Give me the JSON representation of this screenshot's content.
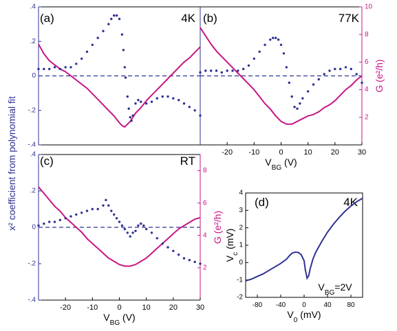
{
  "figure": {
    "shared_ylabel": "x² coefficient from polynomial fit",
    "colors": {
      "x2": "#2e3192",
      "g": "#c71585",
      "axis": "#000000",
      "left_axis": "#2e3192",
      "right_axis": "#c71585"
    }
  },
  "chart_data": [
    {
      "id": "a",
      "type": "scatter+line",
      "panel_label": "(a)",
      "temperature": "4K",
      "xlim": [
        -30,
        30
      ],
      "ylim_left": [
        -0.4,
        0.4
      ],
      "ylim_right": [
        0,
        10
      ],
      "xticks": [],
      "yticks_left": [
        -0.4,
        -0.2,
        0,
        0.2,
        0.4
      ],
      "yticks_right": [],
      "x2_points": [
        [
          -30,
          0.04
        ],
        [
          -28,
          0.04
        ],
        [
          -26,
          0.04
        ],
        [
          -24,
          0.05
        ],
        [
          -22,
          0.04
        ],
        [
          -20,
          0.05
        ],
        [
          -18,
          0.05
        ],
        [
          -16,
          0.07
        ],
        [
          -14,
          0.1
        ],
        [
          -12,
          0.14
        ],
        [
          -10,
          0.18
        ],
        [
          -8,
          0.22
        ],
        [
          -6,
          0.26
        ],
        [
          -4,
          0.3
        ],
        [
          -3,
          0.33
        ],
        [
          -2,
          0.35
        ],
        [
          -1,
          0.35
        ],
        [
          0,
          0.33
        ],
        [
          1,
          0.24
        ],
        [
          1.5,
          0.15
        ],
        [
          2,
          0.05
        ],
        [
          2.3,
          -0.01
        ],
        [
          3,
          -0.12
        ],
        [
          3.5,
          -0.19
        ],
        [
          4,
          -0.24
        ],
        [
          4.5,
          -0.26
        ],
        [
          5,
          -0.23
        ],
        [
          6,
          -0.16
        ],
        [
          7,
          -0.14
        ],
        [
          8,
          -0.15
        ],
        [
          10,
          -0.16
        ],
        [
          12,
          -0.15
        ],
        [
          14,
          -0.13
        ],
        [
          16,
          -0.12
        ],
        [
          18,
          -0.12
        ],
        [
          20,
          -0.13
        ],
        [
          22,
          -0.14
        ],
        [
          24,
          -0.16
        ],
        [
          26,
          -0.18
        ],
        [
          28,
          -0.2
        ],
        [
          30,
          -0.23
        ]
      ],
      "g_line": [
        [
          -30,
          7.3
        ],
        [
          -28,
          6.6
        ],
        [
          -26,
          6.1
        ],
        [
          -24,
          5.8
        ],
        [
          -22,
          5.5
        ],
        [
          -20,
          5.3
        ],
        [
          -18,
          5.0
        ],
        [
          -16,
          4.7
        ],
        [
          -14,
          4.4
        ],
        [
          -12,
          4.1
        ],
        [
          -10,
          3.7
        ],
        [
          -8,
          3.3
        ],
        [
          -6,
          2.9
        ],
        [
          -4,
          2.5
        ],
        [
          -2,
          2.1
        ],
        [
          0,
          1.6
        ],
        [
          1,
          1.4
        ],
        [
          2,
          1.3
        ],
        [
          3,
          1.5
        ],
        [
          4,
          1.7
        ],
        [
          5,
          2.0
        ],
        [
          6,
          2.3
        ],
        [
          8,
          2.7
        ],
        [
          10,
          3.2
        ],
        [
          12,
          3.6
        ],
        [
          14,
          4.0
        ],
        [
          16,
          4.4
        ],
        [
          18,
          4.8
        ],
        [
          20,
          5.2
        ],
        [
          22,
          5.6
        ],
        [
          24,
          6.0
        ],
        [
          26,
          6.3
        ],
        [
          28,
          6.7
        ],
        [
          30,
          7.1
        ]
      ]
    },
    {
      "id": "b",
      "type": "scatter+line",
      "panel_label": "(b)",
      "temperature": "77K",
      "xlabel": "V_BG (V)",
      "xlim": [
        -30,
        30
      ],
      "ylim_left": [
        -0.4,
        0.4
      ],
      "ylim_right": [
        0,
        10
      ],
      "xticks": [
        -20,
        -10,
        0,
        10,
        20,
        30
      ],
      "yticks_left": [],
      "yticks_right": [
        2,
        4,
        6,
        8,
        10
      ],
      "right_ylabel": "G (e²/h)",
      "x2_points": [
        [
          -30,
          0.02
        ],
        [
          -28,
          0.03
        ],
        [
          -26,
          0.03
        ],
        [
          -24,
          0.03
        ],
        [
          -22,
          0.02
        ],
        [
          -20,
          0.03
        ],
        [
          -18,
          0.03
        ],
        [
          -16,
          0.03
        ],
        [
          -14,
          0.04
        ],
        [
          -12,
          0.06
        ],
        [
          -10,
          0.1
        ],
        [
          -8,
          0.14
        ],
        [
          -6,
          0.18
        ],
        [
          -4,
          0.21
        ],
        [
          -3,
          0.22
        ],
        [
          -2,
          0.22
        ],
        [
          -1,
          0.21
        ],
        [
          0,
          0.18
        ],
        [
          1,
          0.13
        ],
        [
          2,
          0.05
        ],
        [
          3,
          -0.04
        ],
        [
          4,
          -0.12
        ],
        [
          5,
          -0.18
        ],
        [
          6,
          -0.19
        ],
        [
          7,
          -0.16
        ],
        [
          8,
          -0.13
        ],
        [
          10,
          -0.09
        ],
        [
          12,
          -0.05
        ],
        [
          14,
          -0.02
        ],
        [
          16,
          0.01
        ],
        [
          18,
          0.03
        ],
        [
          20,
          0.04
        ],
        [
          22,
          0.04
        ],
        [
          24,
          0.05
        ],
        [
          26,
          0.04
        ],
        [
          28,
          0.01
        ],
        [
          30,
          -0.04
        ]
      ],
      "g_line": [
        [
          -30,
          8.5
        ],
        [
          -28,
          7.9
        ],
        [
          -26,
          7.3
        ],
        [
          -24,
          6.8
        ],
        [
          -22,
          6.4
        ],
        [
          -20,
          6.0
        ],
        [
          -18,
          5.6
        ],
        [
          -16,
          5.2
        ],
        [
          -14,
          4.8
        ],
        [
          -12,
          4.4
        ],
        [
          -10,
          4.0
        ],
        [
          -8,
          3.5
        ],
        [
          -6,
          3.0
        ],
        [
          -4,
          2.6
        ],
        [
          -2,
          2.1
        ],
        [
          0,
          1.7
        ],
        [
          2,
          1.5
        ],
        [
          4,
          1.5
        ],
        [
          6,
          1.7
        ],
        [
          8,
          1.9
        ],
        [
          10,
          2.1
        ],
        [
          12,
          2.2
        ],
        [
          14,
          2.4
        ],
        [
          16,
          2.7
        ],
        [
          18,
          2.9
        ],
        [
          20,
          3.2
        ],
        [
          22,
          3.6
        ],
        [
          24,
          4.0
        ],
        [
          26,
          4.3
        ],
        [
          28,
          4.7
        ],
        [
          30,
          5.0
        ]
      ]
    },
    {
      "id": "c",
      "type": "scatter+line",
      "panel_label": "(c)",
      "temperature": "RT",
      "xlabel": "V_BG (V)",
      "xlim": [
        -30,
        30
      ],
      "ylim_left": [
        -0.4,
        0.4
      ],
      "ylim_right": [
        0,
        9
      ],
      "xticks": [
        -20,
        -10,
        0,
        10,
        20,
        30
      ],
      "yticks_left": [
        -0.4,
        -0.2,
        0,
        0.2,
        0.4
      ],
      "yticks_right": [
        2,
        4,
        6,
        8
      ],
      "right_ylabel": "G (e²/h)",
      "x2_points": [
        [
          -30,
          0.01
        ],
        [
          -28,
          0.02
        ],
        [
          -26,
          0.03
        ],
        [
          -24,
          0.03
        ],
        [
          -22,
          0.04
        ],
        [
          -20,
          0.05
        ],
        [
          -18,
          0.06
        ],
        [
          -16,
          0.07
        ],
        [
          -14,
          0.08
        ],
        [
          -12,
          0.09
        ],
        [
          -10,
          0.1
        ],
        [
          -8,
          0.1
        ],
        [
          -6,
          0.12
        ],
        [
          -5,
          0.15
        ],
        [
          -4,
          0.12
        ],
        [
          -3,
          0.09
        ],
        [
          -2,
          0.07
        ],
        [
          -1,
          0.05
        ],
        [
          0,
          0.03
        ],
        [
          1,
          0.01
        ],
        [
          2,
          -0.01
        ],
        [
          3,
          -0.03
        ],
        [
          4,
          -0.05
        ],
        [
          5,
          -0.03
        ],
        [
          6,
          -0.02
        ],
        [
          7,
          0.01
        ],
        [
          8,
          0.02
        ],
        [
          9,
          0.01
        ],
        [
          10,
          -0.01
        ],
        [
          12,
          -0.03
        ],
        [
          14,
          -0.06
        ],
        [
          16,
          -0.09
        ],
        [
          18,
          -0.11
        ],
        [
          20,
          -0.13
        ],
        [
          22,
          -0.15
        ],
        [
          24,
          -0.17
        ],
        [
          26,
          -0.18
        ],
        [
          28,
          -0.19
        ],
        [
          30,
          -0.2
        ]
      ],
      "g_line": [
        [
          -30,
          7.0
        ],
        [
          -28,
          6.6
        ],
        [
          -26,
          6.2
        ],
        [
          -24,
          5.8
        ],
        [
          -22,
          5.5
        ],
        [
          -20,
          5.1
        ],
        [
          -18,
          4.8
        ],
        [
          -16,
          4.5
        ],
        [
          -14,
          4.2
        ],
        [
          -12,
          3.8
        ],
        [
          -10,
          3.5
        ],
        [
          -8,
          3.2
        ],
        [
          -6,
          2.9
        ],
        [
          -4,
          2.6
        ],
        [
          -2,
          2.4
        ],
        [
          0,
          2.2
        ],
        [
          2,
          2.1
        ],
        [
          4,
          2.1
        ],
        [
          6,
          2.2
        ],
        [
          8,
          2.4
        ],
        [
          10,
          2.6
        ],
        [
          12,
          2.9
        ],
        [
          14,
          3.2
        ],
        [
          16,
          3.5
        ],
        [
          18,
          3.8
        ],
        [
          20,
          4.1
        ],
        [
          22,
          4.4
        ],
        [
          24,
          4.6
        ],
        [
          26,
          4.8
        ],
        [
          28,
          5.0
        ],
        [
          30,
          5.1
        ]
      ]
    },
    {
      "id": "d",
      "type": "line",
      "panel_label": "(d)",
      "temperature": "4K",
      "annotation": "V_BG=2V",
      "xlabel": "V_0 (mV)",
      "ylabel": "V_c (mV)",
      "xlim": [
        -100,
        100
      ],
      "ylim": [
        -2,
        4
      ],
      "xticks": [
        -80,
        -40,
        0,
        40,
        80
      ],
      "yticks": [
        -2,
        -1,
        0,
        1,
        2,
        3,
        4
      ],
      "line": [
        [
          -100,
          -1.05
        ],
        [
          -90,
          -0.95
        ],
        [
          -80,
          -0.8
        ],
        [
          -70,
          -0.65
        ],
        [
          -60,
          -0.45
        ],
        [
          -50,
          -0.25
        ],
        [
          -40,
          -0.05
        ],
        [
          -30,
          0.2
        ],
        [
          -25,
          0.4
        ],
        [
          -20,
          0.55
        ],
        [
          -15,
          0.6
        ],
        [
          -10,
          0.58
        ],
        [
          -5,
          0.45
        ],
        [
          0,
          0.1
        ],
        [
          2,
          -0.4
        ],
        [
          5,
          -0.9
        ],
        [
          8,
          -0.75
        ],
        [
          10,
          -0.4
        ],
        [
          15,
          0.2
        ],
        [
          20,
          0.6
        ],
        [
          30,
          1.2
        ],
        [
          40,
          1.75
        ],
        [
          50,
          2.2
        ],
        [
          60,
          2.6
        ],
        [
          70,
          2.95
        ],
        [
          80,
          3.25
        ],
        [
          90,
          3.5
        ],
        [
          100,
          3.7
        ]
      ]
    }
  ]
}
